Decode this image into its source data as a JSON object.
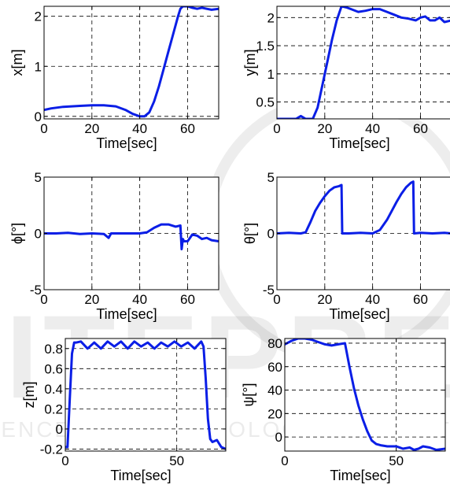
{
  "chart_data": [
    {
      "type": "line",
      "xlabel": "Time[sec]",
      "ylabel": "x[m]",
      "xlim": [
        0,
        73
      ],
      "ylim": [
        -0.05,
        2.2
      ],
      "xticks": [
        0,
        20,
        40,
        60
      ],
      "xtick_labels": [
        "0",
        "20",
        "40",
        "60"
      ],
      "yticks": [
        0,
        1,
        2
      ],
      "ytick_labels": [
        "0",
        "1",
        "2"
      ],
      "grid": true,
      "series": [
        {
          "color": "#0a1ee6",
          "x": [
            0,
            3,
            8,
            15,
            20,
            25,
            30,
            34,
            37,
            40,
            42,
            44,
            46,
            48,
            50,
            52,
            54,
            56,
            57,
            58,
            60,
            62,
            64,
            66,
            68,
            70,
            73
          ],
          "y": [
            0.13,
            0.16,
            0.19,
            0.21,
            0.22,
            0.22,
            0.2,
            0.13,
            0.05,
            0.0,
            0.0,
            0.08,
            0.3,
            0.6,
            0.95,
            1.3,
            1.65,
            2.0,
            2.15,
            2.2,
            2.2,
            2.17,
            2.15,
            2.17,
            2.15,
            2.13,
            2.15
          ]
        }
      ]
    },
    {
      "type": "line",
      "xlabel": "Time[sec]",
      "ylabel": "y[m]",
      "xlim": [
        0,
        73
      ],
      "ylim": [
        0.2,
        2.2
      ],
      "xticks": [
        0,
        20,
        40,
        60
      ],
      "xtick_labels": [
        "0",
        "20",
        "40",
        "60"
      ],
      "yticks": [
        0.5,
        1,
        1.5,
        2
      ],
      "ytick_labels": [
        "0.5",
        "1",
        "1.5",
        "2"
      ],
      "grid": true,
      "series": [
        {
          "color": "#0a1ee6",
          "x": [
            0,
            5,
            8,
            10,
            12,
            13,
            15,
            17,
            19,
            21,
            23,
            25,
            27,
            29,
            31,
            34,
            37,
            40,
            43,
            46,
            49,
            52,
            55,
            58,
            60,
            62,
            64,
            66,
            68,
            70,
            73
          ],
          "y": [
            0.2,
            0.2,
            0.2,
            0.25,
            0.2,
            0.2,
            0.2,
            0.4,
            0.8,
            1.2,
            1.6,
            1.95,
            2.2,
            2.18,
            2.15,
            2.1,
            2.12,
            2.15,
            2.15,
            2.1,
            2.05,
            2.0,
            1.98,
            1.95,
            2.0,
            2.02,
            1.95,
            1.95,
            2.0,
            1.92,
            1.95
          ]
        }
      ]
    },
    {
      "type": "line",
      "xlabel": "Time[sec]",
      "ylabel": "ϕ[°]",
      "xlim": [
        0,
        73
      ],
      "ylim": [
        -5,
        5
      ],
      "xticks": [
        0,
        20,
        40,
        60
      ],
      "xtick_labels": [
        "0",
        "20",
        "40",
        "60"
      ],
      "yticks": [
        -5,
        0,
        5
      ],
      "ytick_labels": [
        "-5",
        "0",
        "5"
      ],
      "grid": true,
      "series": [
        {
          "color": "#0a1ee6",
          "x": [
            0,
            5,
            10,
            15,
            20,
            25,
            27,
            28,
            30,
            35,
            40,
            43,
            46,
            49,
            52,
            55,
            57,
            57.5,
            58,
            58.5,
            60,
            62,
            64,
            66,
            68,
            70,
            73
          ],
          "y": [
            0.0,
            0.0,
            0.05,
            -0.05,
            0.0,
            -0.05,
            -0.4,
            0.0,
            0.0,
            0.0,
            0.0,
            0.1,
            0.5,
            0.8,
            0.8,
            0.6,
            0.7,
            -1.4,
            -0.5,
            -0.7,
            -0.7,
            -0.1,
            -0.2,
            -0.5,
            -0.4,
            -0.6,
            -0.7
          ]
        }
      ]
    },
    {
      "type": "line",
      "xlabel": "Time[sec]",
      "ylabel": "θ[°]",
      "xlim": [
        0,
        73
      ],
      "ylim": [
        -5,
        5
      ],
      "xticks": [
        0,
        20,
        40,
        60
      ],
      "xtick_labels": [
        "0",
        "20",
        "40",
        "60"
      ],
      "yticks": [
        -5,
        0,
        5
      ],
      "ytick_labels": [
        "-5",
        "0",
        "5"
      ],
      "grid": true,
      "series": [
        {
          "color": "#0a1ee6",
          "x": [
            0,
            5,
            10,
            12,
            14,
            16,
            18,
            20,
            22,
            24,
            26,
            27,
            27.3,
            30,
            35,
            40,
            43,
            46,
            48,
            50,
            52,
            54,
            56,
            57,
            57.3,
            60,
            65,
            70,
            73
          ],
          "y": [
            0.0,
            0.05,
            0.0,
            0.1,
            1.0,
            2.0,
            2.7,
            3.3,
            3.8,
            4.1,
            4.2,
            4.3,
            0.0,
            0.0,
            0.05,
            0.0,
            0.3,
            1.2,
            2.0,
            2.8,
            3.5,
            4.1,
            4.5,
            4.6,
            0.0,
            0.05,
            0.0,
            0.05,
            0.0
          ]
        }
      ]
    },
    {
      "type": "line",
      "xlabel": "Time[sec]",
      "ylabel": "z[m]",
      "xlim": [
        0,
        72
      ],
      "ylim": [
        -0.22,
        0.9
      ],
      "xticks": [
        0,
        50
      ],
      "xtick_labels": [
        "0",
        "50"
      ],
      "yticks": [
        -0.2,
        0,
        0.2,
        0.4,
        0.6,
        0.8
      ],
      "ytick_labels": [
        "-0.2",
        "0",
        "0.2",
        "0.4",
        "0.6",
        "0.8"
      ],
      "grid": true,
      "series": [
        {
          "color": "#0a1ee6",
          "x": [
            0,
            1,
            2,
            3,
            4,
            5,
            7,
            10,
            13,
            16,
            19,
            22,
            25,
            28,
            31,
            34,
            37,
            40,
            43,
            46,
            49,
            52,
            55,
            58,
            61,
            62,
            63,
            64,
            65,
            66,
            68,
            70,
            72
          ],
          "y": [
            -0.18,
            -0.18,
            0.3,
            0.75,
            0.86,
            0.86,
            0.87,
            0.8,
            0.86,
            0.8,
            0.87,
            0.82,
            0.87,
            0.8,
            0.87,
            0.82,
            0.86,
            0.8,
            0.86,
            0.82,
            0.87,
            0.82,
            0.86,
            0.8,
            0.87,
            0.82,
            0.5,
            0.1,
            -0.1,
            -0.13,
            -0.11,
            -0.18,
            -0.2
          ]
        }
      ]
    },
    {
      "type": "line",
      "xlabel": "Time[sec]",
      "ylabel": "ψ[°]",
      "xlim": [
        0,
        72
      ],
      "ylim": [
        -12,
        84
      ],
      "xticks": [
        0,
        50
      ],
      "xtick_labels": [
        "0",
        "50"
      ],
      "yticks": [
        0,
        20,
        40,
        60,
        80
      ],
      "ytick_labels": [
        "0",
        "20",
        "40",
        "60",
        "80"
      ],
      "grid": true,
      "series": [
        {
          "color": "#0a1ee6",
          "x": [
            0,
            3,
            6,
            9,
            12,
            15,
            18,
            21,
            24,
            27,
            29,
            31,
            33,
            35,
            37,
            39,
            41,
            43,
            46,
            50,
            53,
            56,
            58,
            60,
            62,
            65,
            68,
            72
          ],
          "y": [
            79,
            82,
            84,
            84,
            83,
            81,
            79,
            78,
            79,
            80,
            60,
            42,
            27,
            15,
            5,
            -3,
            -6,
            -7,
            -8,
            -8,
            -10,
            -9,
            -11,
            -10,
            -8,
            -9,
            -11,
            -10
          ]
        }
      ]
    }
  ],
  "watermark": {
    "text": "SCITEPRESS",
    "subtext": "SCIENCE AND TECHNOLOGY PUBLICATIONS"
  }
}
